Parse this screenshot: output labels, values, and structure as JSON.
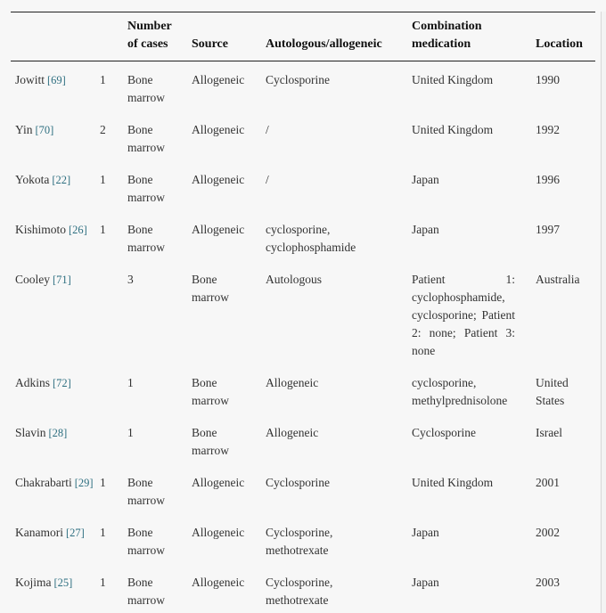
{
  "colors": {
    "background": "#f7f7f7",
    "rule": "#222222",
    "body_text": "#333333",
    "header_text": "#111111",
    "reference_link": "#2e6f80",
    "edge_line": "#d8d8d8"
  },
  "table": {
    "headers": {
      "author": "",
      "number_of_cases": "Number of cases",
      "source": "Source",
      "autologous_allogeneic": "Autologous/allogeneic",
      "combination_medication": "Combination medication",
      "location": "Location"
    },
    "rows": [
      {
        "author": "Jowitt",
        "ref": "[69]",
        "cases": "1",
        "source": "Bone marrow",
        "graft_type": "Allogeneic",
        "medication": "Cyclosporine",
        "location": "United Kingdom",
        "year": "1990"
      },
      {
        "author": "Yin",
        "ref": "[70]",
        "cases": "2",
        "source": "Bone marrow",
        "graft_type": "Allogeneic",
        "medication": "/",
        "location": "United Kingdom",
        "year": "1992"
      },
      {
        "author": "Yokota",
        "ref": "[22]",
        "cases": "1",
        "source": "Bone marrow",
        "graft_type": "Allogeneic",
        "medication": "/",
        "location": "Japan",
        "year": "1996"
      },
      {
        "author": "Kishimoto",
        "ref": "[26]",
        "cases": "1",
        "source": "Bone marrow",
        "graft_type": "Allogeneic",
        "medication": "cyclosporine, cyclophosphamide",
        "location": "Japan",
        "year": "1997"
      },
      {
        "author": "Cooley",
        "ref": "[71]",
        "cases": "3",
        "source": "Bone marrow",
        "graft_type": "Autologous",
        "medication": "Patient 1: cyclophosphamide, cyclosporine; Patient 2: none; Patient 3: none",
        "location": "Australia"
      },
      {
        "author": "Adkins",
        "ref": "[72]",
        "cases": "1",
        "source": "Bone marrow",
        "graft_type": "Allogeneic",
        "medication": "cyclosporine, methylprednisolone",
        "location": "United States"
      },
      {
        "author": "Slavin",
        "ref": "[28]",
        "cases": "1",
        "source": "Bone marrow",
        "graft_type": "Allogeneic",
        "medication": "Cyclosporine",
        "location": "Israel"
      },
      {
        "author": "Chakrabarti",
        "ref": "[29]",
        "cases": "1",
        "source": "Bone marrow",
        "graft_type": "Allogeneic",
        "medication": "Cyclosporine",
        "location": "United Kingdom",
        "year": "2001"
      },
      {
        "author": "Kanamori",
        "ref": "[27]",
        "cases": "1",
        "source": "Bone marrow",
        "graft_type": "Allogeneic",
        "medication": "Cyclosporine, methotrexate",
        "location": "Japan",
        "year": "2002"
      },
      {
        "author": "Kojima",
        "ref": "[25]",
        "cases": "1",
        "source": "Bone marrow",
        "graft_type": "Allogeneic",
        "medication": "Cyclosporine, methotrexate",
        "location": "Japan",
        "year": "2003"
      }
    ]
  }
}
